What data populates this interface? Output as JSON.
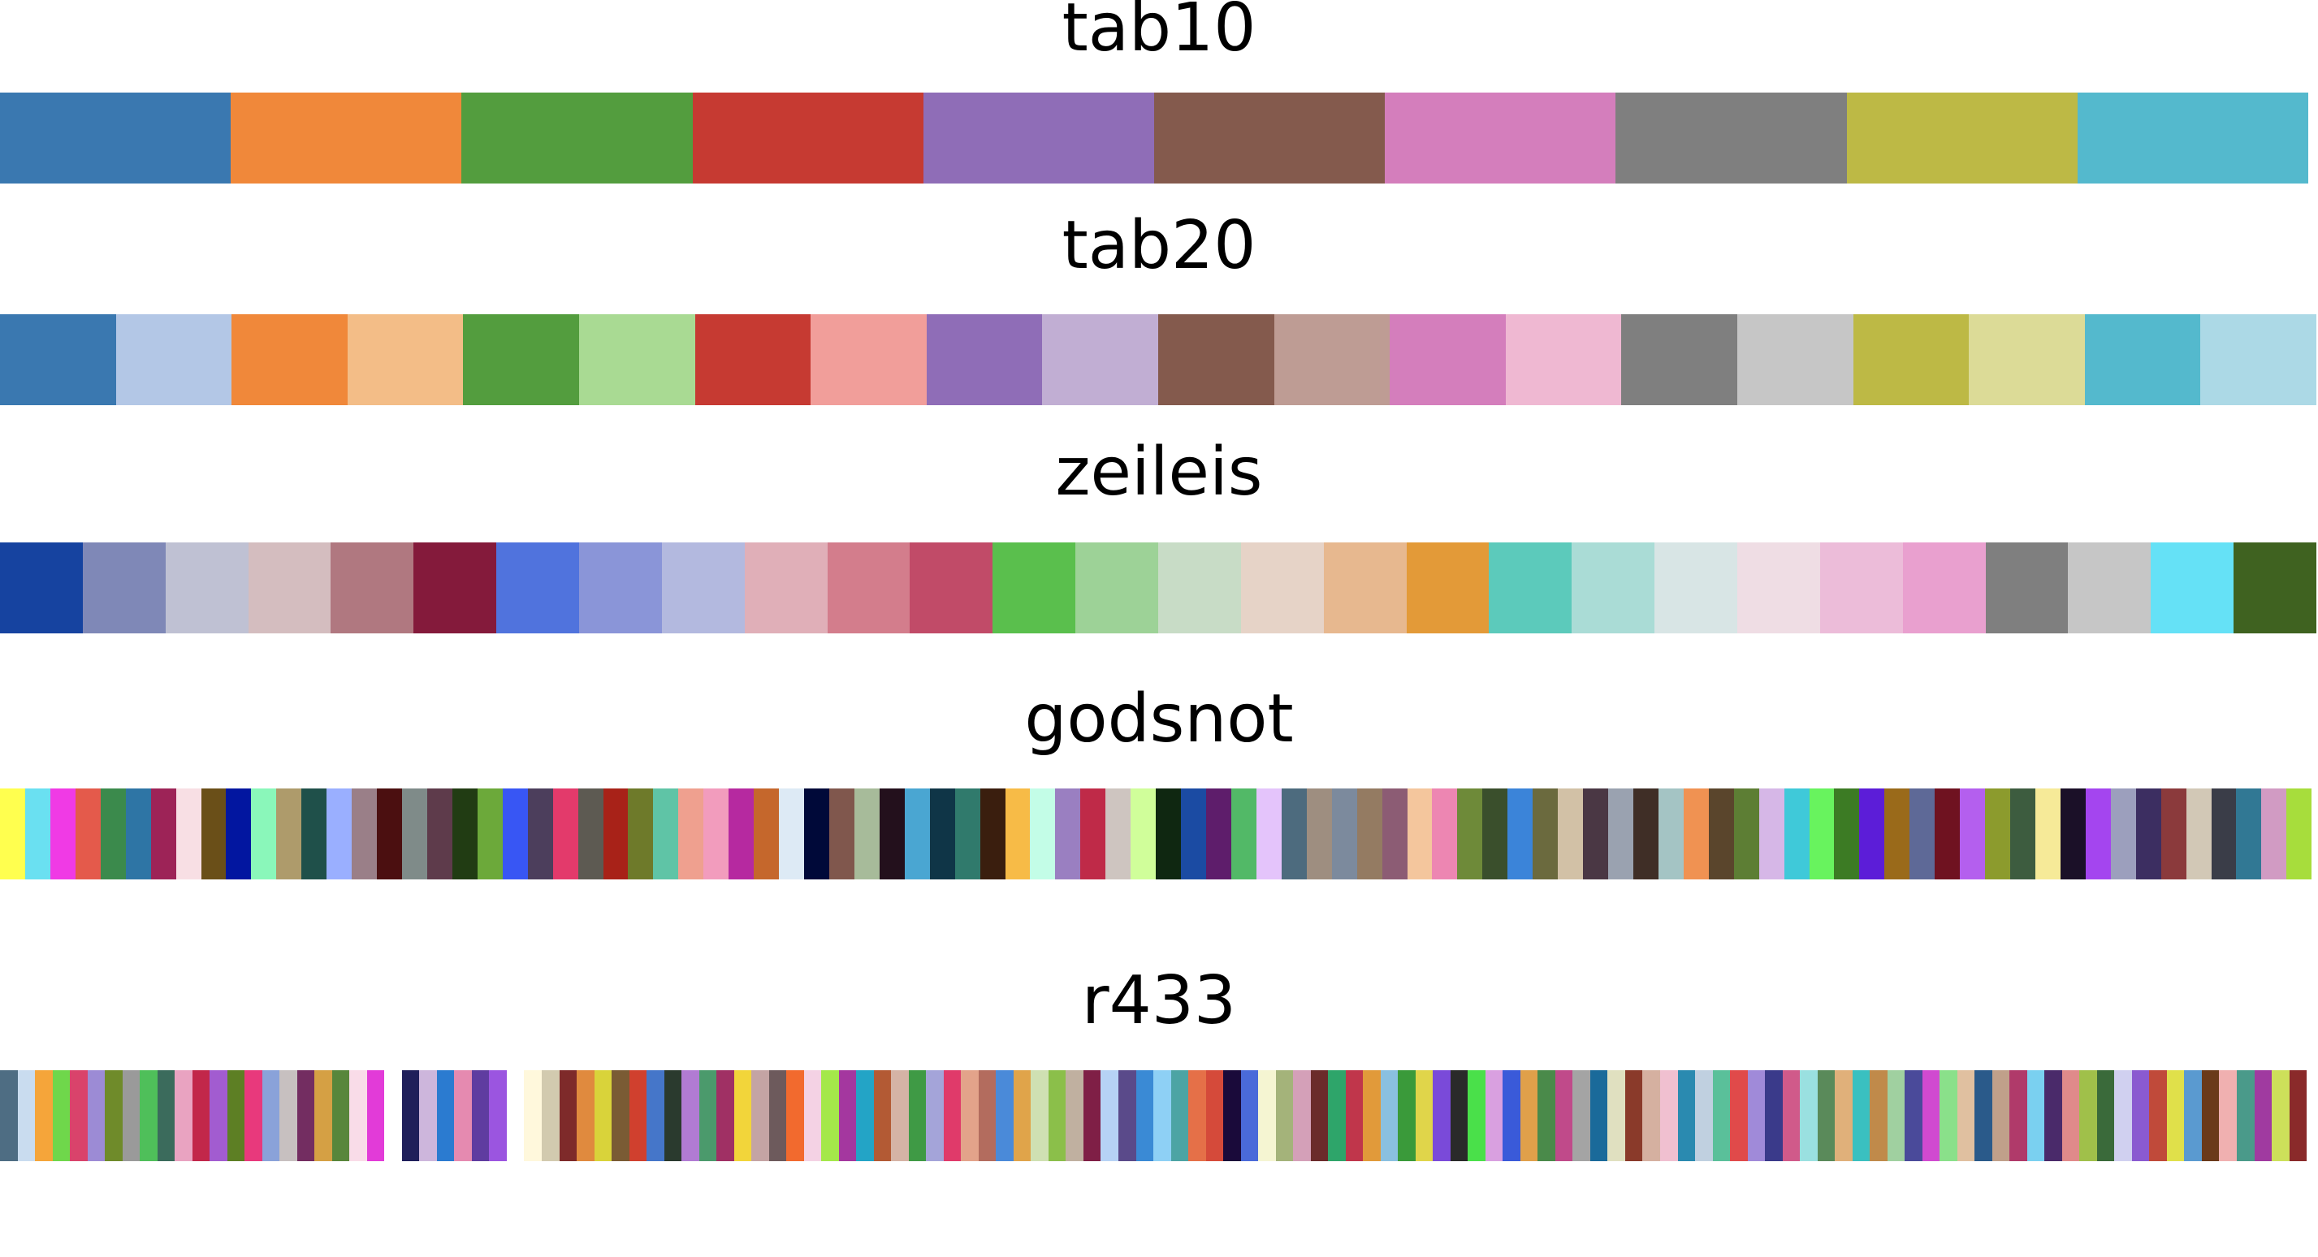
{
  "palettes": [
    {
      "name": "tab10",
      "colors": [
        "#3a78b0",
        "#f0883a",
        "#539d3e",
        "#c63a32",
        "#8f6db7",
        "#845a4d",
        "#d47ebc",
        "#7f7f7f",
        "#bdb945",
        "#54b9cd"
      ]
    },
    {
      "name": "tab20",
      "colors": [
        "#3a78b0",
        "#b3c7e6",
        "#f0883a",
        "#f3bd87",
        "#539d3e",
        "#a9da93",
        "#c63a32",
        "#f19e9a",
        "#8f6db7",
        "#c1aed3",
        "#845a4d",
        "#be9c94",
        "#d47ebc",
        "#efb8d2",
        "#7f7f7f",
        "#c6c6c6",
        "#bdb945",
        "#dcdb97",
        "#54b9cd",
        "#acd9e6"
      ]
    },
    {
      "name": "zeileis",
      "colors": [
        "#1643a0",
        "#7f88b7",
        "#bfc1d3",
        "#d4bdbf",
        "#b07880",
        "#841a3b",
        "#5073dd",
        "#8a95d8",
        "#b3b9df",
        "#e0afb8",
        "#d37d8c",
        "#c14b68",
        "#5abf4d",
        "#9dd297",
        "#c8dcc6",
        "#e6d3c7",
        "#e7b88f",
        "#e39a38",
        "#5ccabb",
        "#aadcd6",
        "#d8e5e5",
        "#efdde4",
        "#ecbcd9",
        "#e9a0cf",
        "#7f7f7f",
        "#c6c6c6",
        "#65e1f6",
        "#3f6220"
      ]
    },
    {
      "name": "godsnot",
      "colors": [
        "#ffff4f",
        "#6ae0f1",
        "#f03ae5",
        "#e45a4b",
        "#3b8a4c",
        "#2e75a5",
        "#9d2357",
        "#f8dfe4",
        "#6a4f18",
        "#0216a0",
        "#8af7ba",
        "#ae9b6b",
        "#1f504a",
        "#9aafff",
        "#9a7f88",
        "#4b0f10",
        "#7f8b89",
        "#5e3b4b",
        "#213c13",
        "#6ca93a",
        "#3856f4",
        "#4c3e5c",
        "#e33a6b",
        "#5d5a52",
        "#a82218",
        "#6e7a2a",
        "#5fc4a6",
        "#efa08f",
        "#f29cbd",
        "#b629a0",
        "#c5672c",
        "#ddeaf5",
        "#000939",
        "#80574d",
        "#a7bb9a",
        "#23101c",
        "#4aa6d2",
        "#0f3547",
        "#307a6c",
        "#3a1e0e",
        "#f7bb47",
        "#c3fde7",
        "#9a7fc1",
        "#bf2a48",
        "#cec5c0",
        "#d0fe9a",
        "#0f2711",
        "#1b4ba3",
        "#5e1d6b",
        "#52b967",
        "#e4c4fb",
        "#4d6b7e",
        "#9e8e80",
        "#7c8a9d",
        "#947b62",
        "#8c5c74",
        "#f4c69d",
        "#ed86b2",
        "#6e8a39",
        "#3a4f2c",
        "#3b84d9",
        "#6b6a3e",
        "#d2c1a6",
        "#4a3744",
        "#9aa2b0",
        "#3f2e26",
        "#a4c4c4",
        "#f09252",
        "#5a452c",
        "#5d7e34",
        "#d6b7e7",
        "#3fc9d9",
        "#68f35e",
        "#3c7b24",
        "#5c1dd8",
        "#9a6a1a",
        "#5e6997",
        "#6f1220",
        "#b45fee",
        "#8c9b2d",
        "#3d5c3f",
        "#f6ea98",
        "#1b1028",
        "#a445ef",
        "#9c9fbd",
        "#3c2e61",
        "#8b3a3c",
        "#d2c8b6",
        "#3a3d48",
        "#317894",
        "#d19bc3",
        "#a7dd3c"
      ]
    },
    {
      "name": "r433",
      "colors": [
        "#4e6d83",
        "#c9dcef",
        "#f5a53a",
        "#6fd74b",
        "#d9436b",
        "#9c8bd5",
        "#6f8b2a",
        "#9a9a9a",
        "#4fbf5a",
        "#3b6b5c",
        "#e9a3c1",
        "#c2274a",
        "#a25cd0",
        "#5d7f24",
        "#e8397c",
        "#8aa2d9",
        "#c7c0c0",
        "#732d61",
        "#d5a044",
        "#58863b",
        "#f9dce8",
        "#e23bd8",
        "#ffffff",
        "#1f1f5a",
        "#cdb6dc",
        "#2b7bd0",
        "#e58ab0",
        "#5f3ca0",
        "#9b55e0",
        "#ffffff",
        "#fff8dc",
        "#d2caaf",
        "#7e2a2a",
        "#e08a3e",
        "#d9d33a",
        "#7a5b34",
        "#d0402e",
        "#4576c9",
        "#2a3a2e",
        "#b17bd3",
        "#4b9a6c",
        "#a03064",
        "#f2d53a",
        "#c4a4a4",
        "#6d5a5c",
        "#f26a2e",
        "#f4d2e4",
        "#a4e84a",
        "#a4379f",
        "#23a4c6",
        "#b35a34",
        "#d5b3a5",
        "#3f9a45",
        "#a4a4d9",
        "#e03a6a",
        "#e3a38a",
        "#b36c5e",
        "#4a8ad9",
        "#e0a44a",
        "#cfe0b2",
        "#8bbf4a",
        "#c0b0a0",
        "#7f1f46",
        "#b6d2f5",
        "#5a4a8a",
        "#3a8ad5",
        "#8ed0f5",
        "#4ca4a4",
        "#e57048",
        "#d54a3a",
        "#1a0a3a",
        "#4a6ad9",
        "#f5f5d2",
        "#a4b37a",
        "#d4a0b8",
        "#6b2b2b",
        "#2ea56a",
        "#c0364b",
        "#e19a3a",
        "#8ac0e0",
        "#3a9a3a",
        "#e0d54a",
        "#7a4ad9",
        "#2a2a2a",
        "#4ae04a",
        "#d9a0e0",
        "#3a5ad9",
        "#e0a04a",
        "#4a8a4a",
        "#c04a8a",
        "#a4a4a4",
        "#1a6a9a",
        "#e0e0c0",
        "#8a3a2a",
        "#d5b0a0",
        "#f0c0d0",
        "#2a8ab0",
        "#c0d0e0",
        "#5ac09a",
        "#e04a4a",
        "#a08ad9",
        "#3a3a8a",
        "#d05a8a",
        "#9ae0e0",
        "#5a8a5a",
        "#e0b07a",
        "#3ac0c0",
        "#c08a4a",
        "#a0d0a0",
        "#4a4a9a",
        "#d04ad0",
        "#8ae08a",
        "#e0c0a0",
        "#2a5a8a",
        "#c0a08a",
        "#b03a6a",
        "#7ad0f0",
        "#4a2a6a",
        "#e08a8a",
        "#a0c04a",
        "#3a6a3a",
        "#d0d0f0",
        "#8a5ad0",
        "#c04a3a",
        "#e0e04a",
        "#5a9ad0",
        "#6a3a1a",
        "#f0b0b0",
        "#4a9a8a",
        "#a03aa0",
        "#cde05a",
        "#8a2a2a"
      ]
    }
  ]
}
